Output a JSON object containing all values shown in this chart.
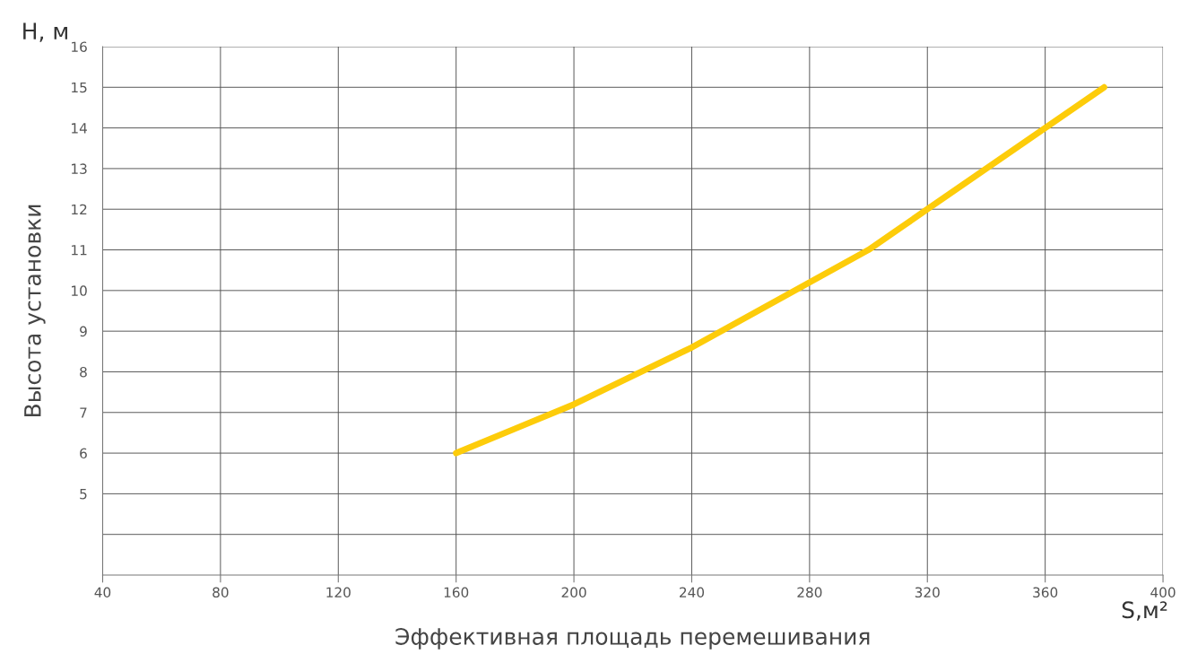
{
  "chart_data": {
    "type": "line",
    "xlabel": "Эффективная площадь перемешивания",
    "ylabel": "Высота установки",
    "annotations": [
      "H, м",
      "S,м²"
    ],
    "x": [
      160,
      180,
      200,
      220,
      240,
      260,
      280,
      300,
      320,
      340,
      360,
      380
    ],
    "series": [
      {
        "color": "#fdcc0a",
        "values": [
          6,
          6.6,
          7.2,
          7.9,
          8.6,
          9.4,
          10.2,
          11,
          12,
          13,
          14,
          15
        ]
      }
    ],
    "xlim": [
      40,
      400
    ],
    "xticks": [
      40,
      80,
      120,
      160,
      200,
      240,
      280,
      320,
      360,
      400
    ],
    "ylim": [
      3,
      16
    ],
    "yticks": [
      {
        "value": 4,
        "label": null
      },
      5,
      6,
      7,
      8,
      9,
      10,
      11,
      12,
      13,
      14,
      15,
      16
    ],
    "grid": true,
    "marker": "none",
    "line_style": "solid"
  }
}
